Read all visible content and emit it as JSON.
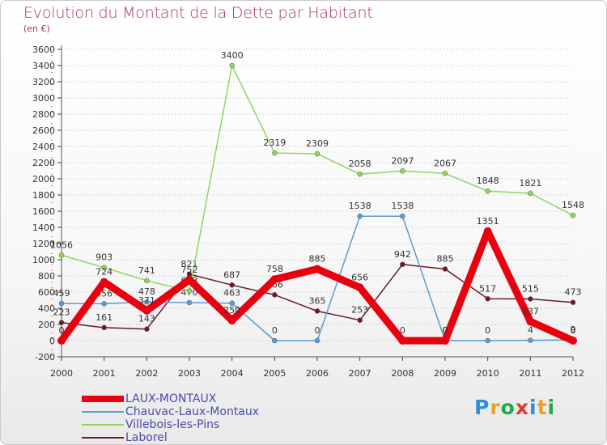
{
  "header": {
    "title": "Evolution du Montant de la Dette par Habitant",
    "subtitle": "(en €)"
  },
  "brand": {
    "letters": [
      "P",
      "r",
      "o",
      "x",
      "i",
      "t",
      "i"
    ],
    "colors": [
      "#2f8fd8",
      "#f0a020",
      "#1fa84a",
      "#e03a2c",
      "#2f8fd8",
      "#f0a020",
      "#1fa84a"
    ]
  },
  "chart_data": {
    "type": "line",
    "title": "Evolution du Montant de la Dette par Habitant",
    "subtitle": "(en €)",
    "xlabel": "",
    "ylabel": "",
    "ylim": [
      -200,
      3600
    ],
    "y_ticks": [
      -200,
      0,
      200,
      400,
      600,
      800,
      1000,
      1200,
      1400,
      1600,
      1800,
      2000,
      2200,
      2400,
      2600,
      2800,
      3000,
      3200,
      3400,
      3600
    ],
    "categories": [
      "2000",
      "2001",
      "2002",
      "2003",
      "2004",
      "2005",
      "2006",
      "2007",
      "2008",
      "2009",
      "2010",
      "2011",
      "2012"
    ],
    "grid": "horizontal dotted",
    "legend": "bottom-left",
    "series": [
      {
        "name": "Laborel",
        "color": "#6b1a22",
        "values": [
          223,
          161,
          143,
          821,
          687,
          566,
          365,
          253,
          942,
          885,
          517,
          515,
          473
        ],
        "labels": [
          "223",
          "161",
          "143",
          "821",
          "687",
          "566",
          "365",
          "253",
          "942",
          "885",
          "517",
          "515",
          "473"
        ]
      },
      {
        "name": "Chauvac-Laux-Montaux",
        "color": "#5b9bd1",
        "values": [
          459,
          456,
          478,
          470,
          463,
          0,
          0,
          1538,
          1538,
          0,
          0,
          4,
          9
        ],
        "labels": [
          "459",
          "456",
          "478",
          "470",
          "463",
          "0",
          "0",
          "1538",
          "1538",
          "0",
          "0",
          "4",
          "9"
        ]
      },
      {
        "name": "Villebois-les-Pins",
        "color": "#8ed65e",
        "values": [
          1056,
          903,
          741,
          613,
          3400,
          2319,
          2309,
          2058,
          2097,
          2067,
          1848,
          1821,
          1548
        ],
        "labels": [
          "1056",
          "903",
          "741",
          "613",
          "3400",
          "2319",
          "2309",
          "2058",
          "2097",
          "2067",
          "1848",
          "1821",
          "1548"
        ]
      },
      {
        "name": "LAUX-MONTAUX",
        "color": "#e8000f",
        "values": [
          0,
          724,
          371,
          752,
          250,
          758,
          885,
          656,
          0,
          0,
          1351,
          237,
          0
        ],
        "labels": [
          "0",
          "724",
          "371",
          "752",
          "250",
          "758",
          "885",
          "656",
          "0",
          "0",
          "1351",
          "237",
          "0"
        ]
      }
    ],
    "legend_order": [
      "LAUX-MONTAUX",
      "Chauvac-Laux-Montaux",
      "Villebois-les-Pins",
      "Laborel"
    ]
  }
}
